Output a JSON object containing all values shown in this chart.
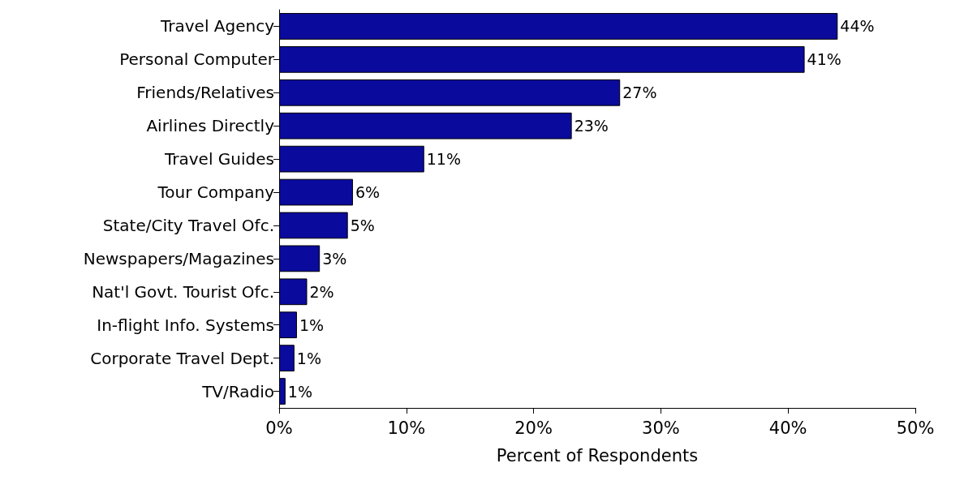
{
  "chart_data": {
    "type": "bar",
    "orientation": "horizontal",
    "xlabel": "Percent of Respondents",
    "categories": [
      "Travel Agency",
      "Personal Computer",
      "Friends/Relatives",
      "Airlines Directly",
      "Travel Guides",
      "Tour Company",
      "State/City Travel Ofc.",
      "Newspapers/Magazines",
      "Nat'l Govt. Tourist Ofc.",
      "In-flight Info. Systems",
      "Corporate Travel Dept.",
      "TV/Radio"
    ],
    "values": [
      43.9,
      41.3,
      26.8,
      23.0,
      11.4,
      5.8,
      5.4,
      3.2,
      2.2,
      1.4,
      1.2,
      0.5
    ],
    "value_labels": [
      "44%",
      "41%",
      "27%",
      "23%",
      "11%",
      "6%",
      "5%",
      "3%",
      "2%",
      "1%",
      "1%",
      "1%"
    ],
    "color": "#0a0a9c",
    "xlim": [
      0,
      50
    ],
    "xticks": [
      {
        "value": 0,
        "label": "0%"
      },
      {
        "value": 10,
        "label": "10%"
      },
      {
        "value": 20,
        "label": "20%"
      },
      {
        "value": 30,
        "label": "30%"
      },
      {
        "value": 40,
        "label": "40%"
      },
      {
        "value": 50,
        "label": "50%"
      }
    ],
    "grid": false
  }
}
